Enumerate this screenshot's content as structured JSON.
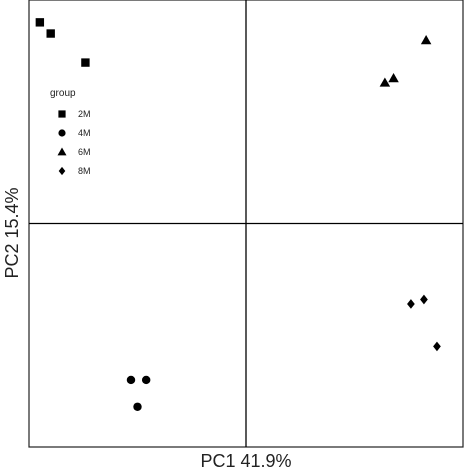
{
  "chart_data": {
    "type": "scatter",
    "xlabel": "PC1 41.9%",
    "ylabel": "PC2 15.4%",
    "xlim": [
      -1.0,
      1.0
    ],
    "ylim": [
      -1.0,
      1.0
    ],
    "grid": false,
    "reference_lines": {
      "x": 0,
      "y": 0
    },
    "legend": {
      "title": "group",
      "position": "top-left"
    },
    "series": [
      {
        "name": "2M",
        "marker": "square",
        "points": [
          [
            -0.95,
            0.9
          ],
          [
            -0.9,
            0.85
          ],
          [
            -0.74,
            0.72
          ]
        ]
      },
      {
        "name": "4M",
        "marker": "circle",
        "points": [
          [
            -0.53,
            -0.7
          ],
          [
            -0.46,
            -0.7
          ],
          [
            -0.5,
            -0.82
          ]
        ]
      },
      {
        "name": "6M",
        "marker": "triangle",
        "points": [
          [
            0.64,
            0.63
          ],
          [
            0.68,
            0.65
          ],
          [
            0.83,
            0.82
          ]
        ]
      },
      {
        "name": "8M",
        "marker": "diamond",
        "points": [
          [
            0.76,
            -0.36
          ],
          [
            0.82,
            -0.34
          ],
          [
            0.88,
            -0.55
          ]
        ]
      }
    ],
    "colors": {
      "ink": "#000000",
      "frame": "#222222"
    }
  }
}
